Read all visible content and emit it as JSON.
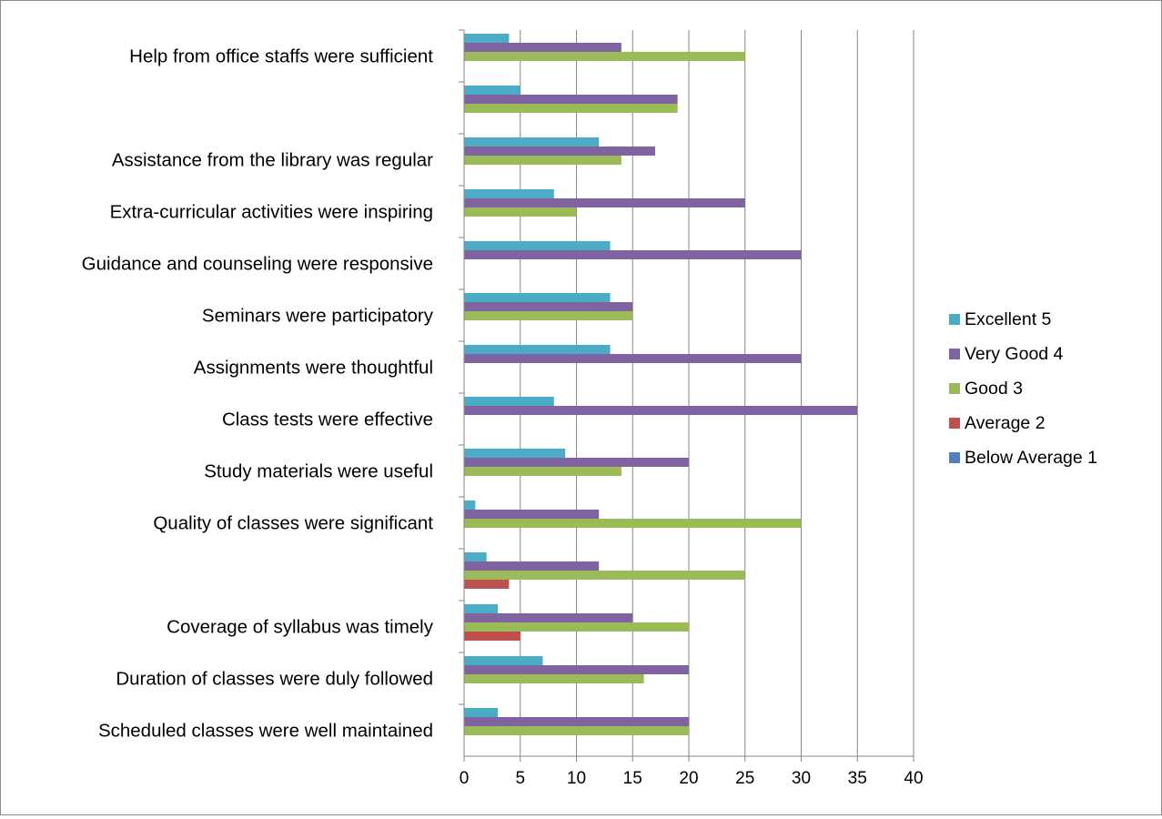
{
  "chart_data": {
    "type": "bar",
    "orientation": "horizontal",
    "title": "",
    "xlabel": "",
    "ylabel": "",
    "xlim": [
      0,
      40
    ],
    "x_ticks": [
      0,
      5,
      10,
      15,
      20,
      25,
      30,
      35,
      40
    ],
    "grid": "vertical",
    "legend_position": "right",
    "categories": [
      "Scheduled classes were well maintained",
      "Duration of classes were duly followed",
      "Coverage of syllabus was timely",
      "",
      "Quality of classes were significant",
      "Study materials were useful",
      "Class tests were effective",
      "Assignments were thoughtful",
      "Seminars were participatory",
      "Guidance and counseling were responsive",
      "Extra-curricular activities were inspiring",
      "Assistance from the library was regular",
      "",
      "Help from office staffs were sufficient"
    ],
    "series": [
      {
        "name": "Below Average 1",
        "color": "#4F81BD",
        "values": [
          0,
          0,
          0,
          0,
          0,
          0,
          0,
          0,
          0,
          0,
          0,
          0,
          0,
          0
        ]
      },
      {
        "name": "Average 2",
        "color": "#C0504D",
        "values": [
          0,
          0,
          5,
          4,
          0,
          0,
          0,
          0,
          0,
          0,
          0,
          0,
          0,
          0
        ]
      },
      {
        "name": "Good 3",
        "color": "#9BBB59",
        "values": [
          20,
          16,
          20,
          25,
          30,
          14,
          0,
          0,
          15,
          0,
          10,
          14,
          19,
          25
        ]
      },
      {
        "name": "Very Good 4",
        "color": "#8064A2",
        "values": [
          20,
          20,
          15,
          12,
          12,
          20,
          35,
          30,
          15,
          30,
          25,
          17,
          19,
          14
        ]
      },
      {
        "name": "Excellent 5",
        "color": "#4BACC6",
        "values": [
          3,
          7,
          3,
          2,
          1,
          9,
          8,
          13,
          13,
          13,
          8,
          12,
          5,
          4
        ]
      }
    ],
    "legend_order": [
      "Excellent 5",
      "Very Good 4",
      "Good 3",
      "Average 2",
      "Below Average 1"
    ]
  }
}
